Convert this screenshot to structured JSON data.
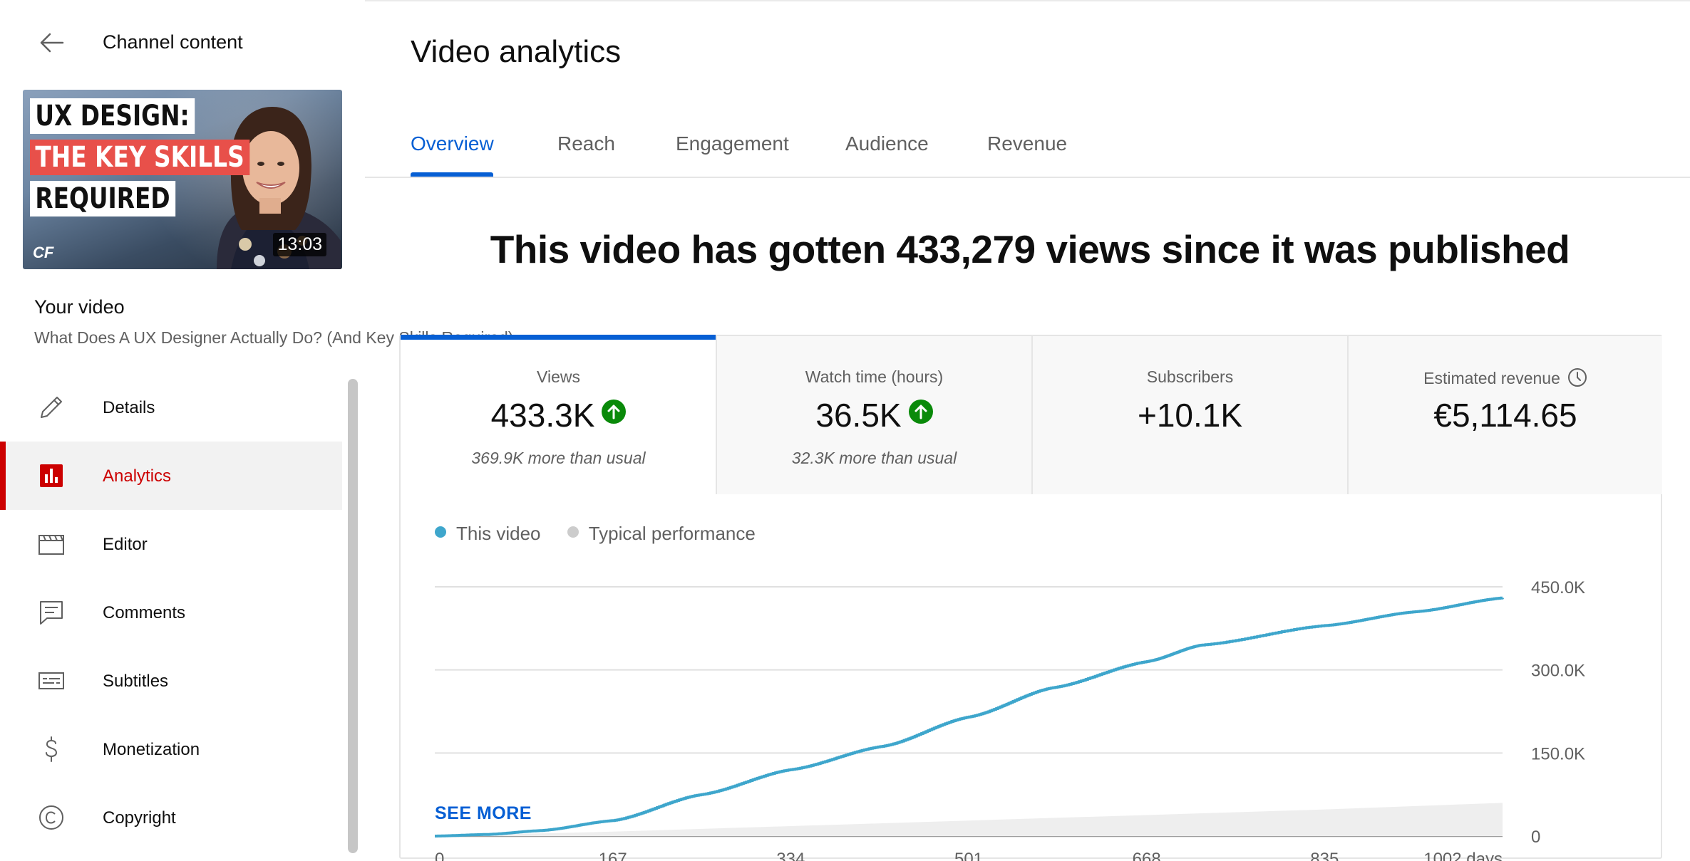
{
  "sidebar": {
    "back_label": "Channel content",
    "thumbnail": {
      "line1": "UX DESIGN:",
      "line2": "THE KEY SKILLS",
      "line3": "REQUIRED",
      "brand": "CF",
      "duration": "13:03"
    },
    "your_video_label": "Your video",
    "video_title": "What Does A UX Designer Actually Do? (And Key Skills Required)",
    "nav": [
      {
        "label": "Details",
        "icon": "pencil-icon"
      },
      {
        "label": "Analytics",
        "icon": "analytics-icon",
        "active": true
      },
      {
        "label": "Editor",
        "icon": "clapperboard-icon"
      },
      {
        "label": "Comments",
        "icon": "comment-icon"
      },
      {
        "label": "Subtitles",
        "icon": "subtitles-icon"
      },
      {
        "label": "Monetization",
        "icon": "dollar-icon"
      },
      {
        "label": "Copyright",
        "icon": "copyright-icon"
      }
    ]
  },
  "main": {
    "title": "Video analytics",
    "tabs": [
      {
        "label": "Overview",
        "active": true
      },
      {
        "label": "Reach"
      },
      {
        "label": "Engagement"
      },
      {
        "label": "Audience"
      },
      {
        "label": "Revenue"
      }
    ],
    "headline": "This video has gotten 433,279 views since it was published",
    "metrics": [
      {
        "label": "Views",
        "value": "433.3K",
        "sub": "369.9K more than usual",
        "trend": "up"
      },
      {
        "label": "Watch time (hours)",
        "value": "36.5K",
        "sub": "32.3K more than usual",
        "trend": "up"
      },
      {
        "label": "Subscribers",
        "value": "+10.1K",
        "sub": ""
      },
      {
        "label": "Estimated revenue",
        "value": "€5,114.65",
        "sub": "",
        "icon": "clock-icon"
      }
    ],
    "legend": {
      "this_video": "This video",
      "typical": "Typical performance"
    },
    "see_more": "SEE MORE"
  },
  "colors": {
    "accent": "#065fd4",
    "active_nav": "#cc0000",
    "line": "#3ea6cc",
    "typical": "#cccccc",
    "trend_up": "#0a8a0a"
  },
  "chart_data": {
    "type": "line",
    "x_tick_labels": [
      "0",
      "167",
      "334",
      "501",
      "668",
      "835",
      "1002 days"
    ],
    "x_ticks": [
      0,
      167,
      334,
      501,
      668,
      835,
      1002
    ],
    "y_tick_labels": [
      "450.0K",
      "300.0K",
      "150.0K",
      "0"
    ],
    "y_ticks": [
      450000,
      300000,
      150000,
      0
    ],
    "xlim": [
      0,
      1002
    ],
    "ylim": [
      0,
      450000
    ],
    "grid": true,
    "legend_position": "top-left",
    "series": [
      {
        "name": "This video",
        "x": [
          0,
          50,
          100,
          167,
          250,
          334,
          420,
          501,
          580,
          668,
          720,
          835,
          920,
          1002
        ],
        "values": [
          0,
          3000,
          10000,
          28000,
          75000,
          120000,
          162000,
          215000,
          268000,
          315000,
          345000,
          380000,
          405000,
          430000
        ]
      },
      {
        "name": "Typical performance",
        "type": "area",
        "x": [
          0,
          167,
          334,
          501,
          668,
          835,
          1002
        ],
        "lower": [
          0,
          0,
          0,
          0,
          0,
          0,
          0
        ],
        "upper": [
          0,
          8000,
          18000,
          28000,
          38000,
          48000,
          60000
        ]
      }
    ]
  }
}
